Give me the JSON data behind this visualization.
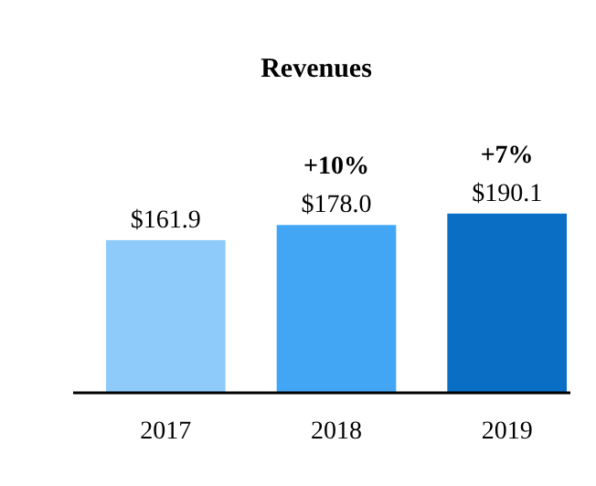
{
  "chart_data": {
    "type": "bar",
    "title": "Revenues",
    "categories": [
      "2017",
      "2018",
      "2019"
    ],
    "values": [
      161.9,
      178.0,
      190.1
    ],
    "colors": [
      "#8ecbfb",
      "#42a6f5",
      "#0a6fc4"
    ],
    "value_labels": [
      "$161.9",
      "$178.0",
      "$190.1"
    ],
    "annotations": [
      "+10%",
      "+7%"
    ],
    "tick_labels": "x"
  }
}
